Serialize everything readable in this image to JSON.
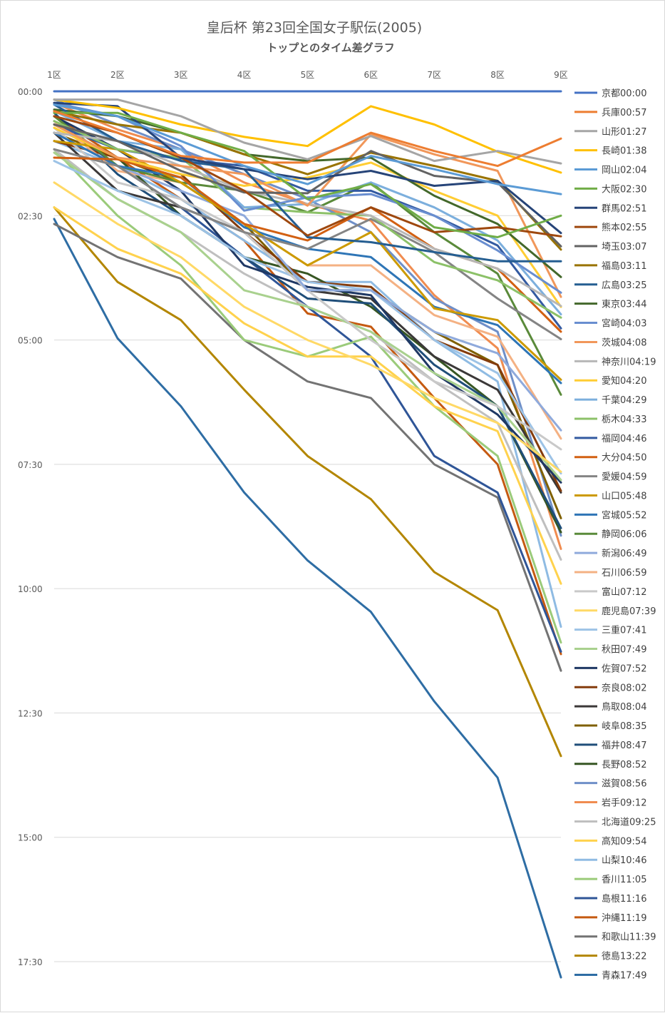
{
  "chart_data": {
    "type": "line",
    "title": "皇后杯 第23回全国女子駅伝(2005)",
    "subtitle": "トップとのタイム差グラフ",
    "xlabel": "",
    "ylabel": "",
    "categories": [
      "1区",
      "2区",
      "3区",
      "4区",
      "5区",
      "6区",
      "7区",
      "8区",
      "9区"
    ],
    "y_tick_labels": [
      "00:00",
      "02:30",
      "05:00",
      "07:30",
      "10:00",
      "12:30",
      "15:00",
      "17:30"
    ],
    "y_tick_values_sec": [
      0,
      150,
      300,
      450,
      600,
      750,
      900,
      1050
    ],
    "ylim_sec": [
      0,
      1070
    ],
    "y_axis_inverted": true,
    "grid": "horizontal",
    "legend_position": "right",
    "series": [
      {
        "name": "京都00:00",
        "color": "#4472c4",
        "values": [
          0,
          0,
          0,
          0,
          0,
          0,
          0,
          0,
          0
        ]
      },
      {
        "name": "兵庫00:57",
        "color": "#ed7d31",
        "values": [
          24,
          50,
          78,
          86,
          86,
          50,
          72,
          90,
          57
        ]
      },
      {
        "name": "山形01:27",
        "color": "#a5a5a5",
        "values": [
          10,
          10,
          30,
          62,
          82,
          54,
          84,
          72,
          87
        ]
      },
      {
        "name": "長崎01:38",
        "color": "#ffc000",
        "values": [
          10,
          20,
          40,
          55,
          66,
          18,
          40,
          73,
          98
        ]
      },
      {
        "name": "岡山02:04",
        "color": "#5b9bd5",
        "values": [
          16,
          30,
          60,
          90,
          112,
          78,
          94,
          112,
          124
        ]
      },
      {
        "name": "大阪02:30",
        "color": "#70ad47",
        "values": [
          26,
          26,
          50,
          72,
          130,
          112,
          164,
          176,
          150
        ]
      },
      {
        "name": "群馬02:51",
        "color": "#264478",
        "values": [
          14,
          18,
          80,
          94,
          106,
          96,
          114,
          108,
          171
        ]
      },
      {
        "name": "熊本02:55",
        "color": "#9e480e",
        "values": [
          30,
          50,
          80,
          120,
          174,
          140,
          170,
          164,
          175
        ]
      },
      {
        "name": "埼玉03:07",
        "color": "#636363",
        "values": [
          40,
          60,
          96,
          122,
          123,
          72,
          102,
          110,
          187
        ]
      },
      {
        "name": "福島03:11",
        "color": "#997300",
        "values": [
          24,
          40,
          50,
          76,
          100,
          74,
          90,
          108,
          191
        ]
      },
      {
        "name": "広島03:25",
        "color": "#255e91",
        "values": [
          16,
          60,
          84,
          94,
          176,
          182,
          194,
          205,
          205
        ]
      },
      {
        "name": "東京03:44",
        "color": "#43682b",
        "values": [
          22,
          30,
          50,
          76,
          84,
          80,
          126,
          160,
          224
        ]
      },
      {
        "name": "宮崎04:03",
        "color": "#698ed0",
        "values": [
          14,
          30,
          66,
          144,
          128,
          124,
          150,
          192,
          243
        ]
      },
      {
        "name": "茨城04:08",
        "color": "#f1975a",
        "values": [
          40,
          80,
          90,
          100,
          138,
          52,
          76,
          96,
          248
        ]
      },
      {
        "name": "神奈川04:19",
        "color": "#b7b7b7",
        "values": [
          50,
          60,
          90,
          120,
          136,
          150,
          190,
          214,
          259
        ]
      },
      {
        "name": "愛知04:20",
        "color": "#ffcd33",
        "values": [
          44,
          80,
          100,
          114,
          104,
          86,
          120,
          150,
          260
        ]
      },
      {
        "name": "千葉04:29",
        "color": "#7cafdd",
        "values": [
          24,
          60,
          70,
          140,
          136,
          110,
          140,
          180,
          269
        ]
      },
      {
        "name": "栃木04:33",
        "color": "#8cc168",
        "values": [
          36,
          70,
          80,
          140,
          146,
          150,
          206,
          228,
          273
        ]
      },
      {
        "name": "福岡04:46",
        "color": "#335aa1",
        "values": [
          40,
          70,
          82,
          90,
          120,
          120,
          150,
          186,
          286
        ]
      },
      {
        "name": "大分04:50",
        "color": "#d26012",
        "values": [
          80,
          82,
          104,
          160,
          180,
          140,
          190,
          214,
          290
        ]
      },
      {
        "name": "愛媛04:59",
        "color": "#848484",
        "values": [
          70,
          90,
          140,
          170,
          190,
          154,
          194,
          250,
          299
        ]
      },
      {
        "name": "山口05:48",
        "color": "#cc9a00",
        "values": [
          60,
          70,
          110,
          160,
          210,
          170,
          262,
          276,
          348
        ]
      },
      {
        "name": "宮城05:52",
        "color": "#2e75b6",
        "values": [
          50,
          90,
          104,
          164,
          190,
          200,
          260,
          282,
          352
        ]
      },
      {
        "name": "静岡06:06",
        "color": "#5a8a3a",
        "values": [
          30,
          90,
          110,
          120,
          146,
          110,
          170,
          220,
          366
        ]
      },
      {
        "name": "新潟06:49",
        "color": "#8faadc",
        "values": [
          50,
          90,
          120,
          150,
          240,
          240,
          290,
          316,
          409
        ]
      },
      {
        "name": "石川06:59",
        "color": "#f4b183",
        "values": [
          36,
          96,
          110,
          160,
          210,
          210,
          270,
          296,
          419
        ]
      },
      {
        "name": "富山07:12",
        "color": "#c9c9c9",
        "values": [
          44,
          110,
          130,
          170,
          240,
          300,
          350,
          380,
          432
        ]
      },
      {
        "name": "鹿児島07:39",
        "color": "#ffd966",
        "values": [
          110,
          160,
          200,
          260,
          300,
          330,
          370,
          400,
          459
        ]
      },
      {
        "name": "三重07:41",
        "color": "#9dc3e6",
        "values": [
          84,
          120,
          150,
          200,
          230,
          240,
          300,
          340,
          461
        ]
      },
      {
        "name": "秋田07:49",
        "color": "#a9d18e",
        "values": [
          74,
          130,
          170,
          240,
          260,
          290,
          340,
          380,
          469
        ]
      },
      {
        "name": "佐賀07:52",
        "color": "#1f3864",
        "values": [
          30,
          70,
          120,
          210,
          236,
          246,
          340,
          390,
          472
        ]
      },
      {
        "name": "奈良08:02",
        "color": "#843c0c",
        "values": [
          60,
          80,
          100,
          170,
          230,
          236,
          300,
          330,
          482
        ]
      },
      {
        "name": "鳥取08:04",
        "color": "#3b3838",
        "values": [
          50,
          120,
          140,
          170,
          240,
          250,
          320,
          360,
          484
        ]
      },
      {
        "name": "岐阜08:35",
        "color": "#7f6000",
        "values": [
          50,
          80,
          110,
          160,
          240,
          240,
          290,
          330,
          515
        ]
      },
      {
        "name": "福井08:47",
        "color": "#1f4e79",
        "values": [
          26,
          100,
          150,
          200,
          250,
          256,
          330,
          380,
          527
        ]
      },
      {
        "name": "長野08:52",
        "color": "#375623",
        "values": [
          40,
          80,
          150,
          200,
          220,
          260,
          320,
          380,
          532
        ]
      },
      {
        "name": "滋賀08:56",
        "color": "#6f8fc8",
        "values": [
          10,
          40,
          70,
          100,
          130,
          170,
          250,
          290,
          536
        ]
      },
      {
        "name": "岩手09:12",
        "color": "#f08c50",
        "values": [
          14,
          46,
          70,
          110,
          136,
          156,
          246,
          310,
          552
        ]
      },
      {
        "name": "北海道09:25",
        "color": "#bfbfbf",
        "values": [
          70,
          130,
          170,
          220,
          260,
          290,
          350,
          400,
          565
        ]
      },
      {
        "name": "高知09:54",
        "color": "#ffd24d",
        "values": [
          140,
          190,
          220,
          280,
          320,
          320,
          380,
          410,
          594
        ]
      },
      {
        "name": "山梨10:46",
        "color": "#8fbbe3",
        "values": [
          60,
          90,
          130,
          180,
          230,
          230,
          300,
          350,
          646
        ]
      },
      {
        "name": "香川11:05",
        "color": "#9bcb7a",
        "values": [
          70,
          150,
          210,
          300,
          320,
          296,
          380,
          440,
          665
        ]
      },
      {
        "name": "島根11:16",
        "color": "#2f5597",
        "values": [
          36,
          90,
          140,
          200,
          260,
          320,
          440,
          484,
          676
        ]
      },
      {
        "name": "沖縄11:19",
        "color": "#c55a11",
        "values": [
          30,
          80,
          130,
          180,
          268,
          284,
          370,
          450,
          679
        ]
      },
      {
        "name": "和歌山11:39",
        "color": "#737373",
        "values": [
          160,
          200,
          226,
          300,
          350,
          370,
          450,
          490,
          699
        ]
      },
      {
        "name": "徳島13:22",
        "color": "#b38600",
        "values": [
          140,
          230,
          276,
          360,
          440,
          492,
          580,
          626,
          802
        ]
      },
      {
        "name": "青森17:49",
        "color": "#2e6da4",
        "values": [
          154,
          298,
          380,
          484,
          566,
          628,
          736,
          828,
          1069
        ]
      }
    ]
  }
}
